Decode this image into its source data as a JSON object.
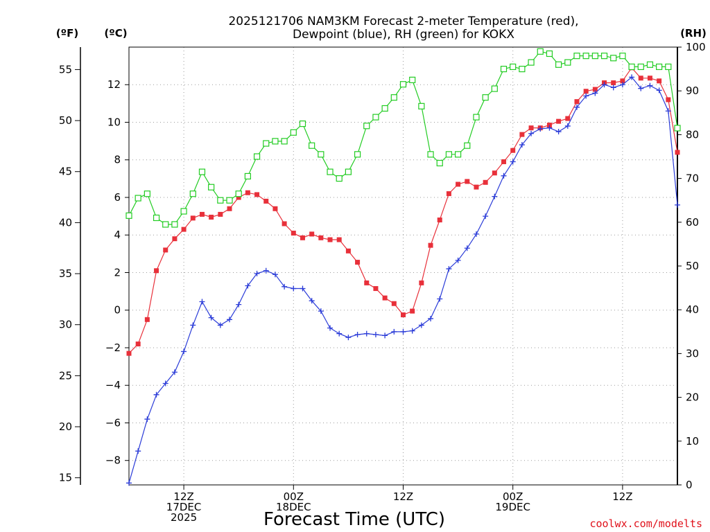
{
  "title_line1": "2025121706 NAM3KM Forecast 2-meter Temperature (red),",
  "title_line2": "Dewpoint (blue), RH (green) for KOKX",
  "units": {
    "f": "(ºF)",
    "c": "(ºC)",
    "rh": "(RH)"
  },
  "xlabel": "Forecast Time (UTC)",
  "credit": "coolwx.com/modelts",
  "x_ticks": [
    {
      "hour": 6,
      "lines": [
        "12Z",
        "17DEC",
        "2025"
      ]
    },
    {
      "hour": 18,
      "lines": [
        "00Z",
        "18DEC"
      ]
    },
    {
      "hour": 30,
      "lines": [
        "12Z"
      ]
    },
    {
      "hour": 42,
      "lines": [
        "00Z",
        "19DEC"
      ]
    },
    {
      "hour": 54,
      "lines": [
        "12Z"
      ]
    }
  ],
  "y_f_ticks": [
    "15",
    "20",
    "25",
    "30",
    "35",
    "40",
    "45",
    "50",
    "55"
  ],
  "y_c_ticks": [
    "-8",
    "-6",
    "-4",
    "-2",
    "0",
    "2",
    "4",
    "6",
    "8",
    "10",
    "12"
  ],
  "y_rh_ticks": [
    "0",
    "10",
    "20",
    "30",
    "40",
    "50",
    "60",
    "70",
    "80",
    "90",
    "100"
  ],
  "chart_data": {
    "type": "line",
    "title": "2025121706 NAM3KM Forecast 2-meter Temperature (red), Dewpoint (blue), RH (green) for KOKX",
    "xlabel": "Forecast Time (UTC)",
    "x_unit": "forecast hour from 2025-12-17 06Z",
    "xlim": [
      0,
      60
    ],
    "ylim_c": [
      -9.3,
      14
    ],
    "ylim_f": [
      14.3,
      57.2
    ],
    "ylim_rh": [
      0,
      100
    ],
    "series": [
      {
        "name": "2-meter Temperature",
        "unit": "C",
        "color": "#e8303a",
        "marker": "filled-square",
        "x": [
          0,
          1,
          2,
          3,
          4,
          5,
          6,
          7,
          8,
          9,
          10,
          11,
          12,
          13,
          14,
          15,
          16,
          17,
          18,
          19,
          20,
          21,
          22,
          23,
          24,
          25,
          26,
          27,
          28,
          29,
          30,
          31,
          32,
          33,
          34,
          35,
          36,
          37,
          38,
          39,
          40,
          41,
          42,
          43,
          44,
          45,
          46,
          47,
          48,
          49,
          50,
          51,
          52,
          53,
          54,
          55,
          56,
          57,
          58,
          59,
          60
        ],
        "values": [
          -2.3,
          -1.8,
          -0.5,
          2.1,
          3.2,
          3.8,
          4.3,
          4.9,
          5.1,
          4.95,
          5.1,
          5.4,
          6.0,
          6.25,
          6.15,
          5.8,
          5.4,
          4.6,
          4.1,
          3.85,
          4.05,
          3.85,
          3.75,
          3.75,
          3.15,
          2.55,
          1.45,
          1.15,
          0.65,
          0.35,
          -0.25,
          -0.05,
          1.45,
          3.45,
          4.8,
          6.2,
          6.7,
          6.85,
          6.55,
          6.8,
          7.3,
          7.9,
          8.5,
          9.35,
          9.7,
          9.7,
          9.85,
          10.05,
          10.2,
          11.1,
          11.65,
          11.75,
          12.1,
          12.1,
          12.2,
          12.9,
          12.35,
          12.35,
          12.2,
          11.2,
          8.4
        ]
      },
      {
        "name": "Dewpoint",
        "unit": "C",
        "color": "#2a3bd8",
        "marker": "plus",
        "x": [
          0,
          1,
          2,
          3,
          4,
          5,
          6,
          7,
          8,
          9,
          10,
          11,
          12,
          13,
          14,
          15,
          16,
          17,
          18,
          19,
          20,
          21,
          22,
          23,
          24,
          25,
          26,
          27,
          28,
          29,
          30,
          31,
          32,
          33,
          34,
          35,
          36,
          37,
          38,
          39,
          40,
          41,
          42,
          43,
          44,
          45,
          46,
          47,
          48,
          49,
          50,
          51,
          52,
          53,
          54,
          55,
          56,
          57,
          58,
          59,
          60
        ],
        "values": [
          -9.2,
          -7.5,
          -5.8,
          -4.5,
          -3.9,
          -3.3,
          -2.2,
          -0.8,
          0.45,
          -0.4,
          -0.8,
          -0.5,
          0.3,
          1.3,
          1.95,
          2.1,
          1.9,
          1.25,
          1.15,
          1.15,
          0.5,
          -0.05,
          -0.95,
          -1.25,
          -1.45,
          -1.3,
          -1.25,
          -1.3,
          -1.35,
          -1.15,
          -1.15,
          -1.1,
          -0.8,
          -0.45,
          0.6,
          2.2,
          2.65,
          3.3,
          4.05,
          5.0,
          6.05,
          7.15,
          7.9,
          8.8,
          9.4,
          9.65,
          9.7,
          9.5,
          9.8,
          10.8,
          11.4,
          11.55,
          12.0,
          11.85,
          12.0,
          12.4,
          11.8,
          11.95,
          11.7,
          10.6,
          5.6
        ]
      },
      {
        "name": "Relative Humidity",
        "unit": "%",
        "color": "#22cc22",
        "marker": "open-square",
        "x": [
          0,
          1,
          2,
          3,
          4,
          5,
          6,
          7,
          8,
          9,
          10,
          11,
          12,
          13,
          14,
          15,
          16,
          17,
          18,
          19,
          20,
          21,
          22,
          23,
          24,
          25,
          26,
          27,
          28,
          29,
          30,
          31,
          32,
          33,
          34,
          35,
          36,
          37,
          38,
          39,
          40,
          41,
          42,
          43,
          44,
          45,
          46,
          47,
          48,
          49,
          50,
          51,
          52,
          53,
          54,
          55,
          56,
          57,
          58,
          59,
          60
        ],
        "values": [
          61.5,
          65.5,
          66.5,
          61,
          59.5,
          59.5,
          62.5,
          66.5,
          71.5,
          68,
          65,
          65,
          66.5,
          70.5,
          75,
          78,
          78.5,
          78.5,
          80.5,
          82.5,
          77.5,
          75.5,
          71.5,
          70,
          71.5,
          75.5,
          82,
          84,
          86,
          88.5,
          91.5,
          92.5,
          86.5,
          75.5,
          73.5,
          75.5,
          75.5,
          77.5,
          84,
          88.5,
          90.5,
          95,
          95.5,
          95,
          96.5,
          99,
          98.5,
          96,
          96.5,
          98,
          98,
          98,
          98,
          97.5,
          98,
          95.5,
          95.5,
          96,
          95.5,
          95.5,
          81.5
        ]
      }
    ]
  }
}
